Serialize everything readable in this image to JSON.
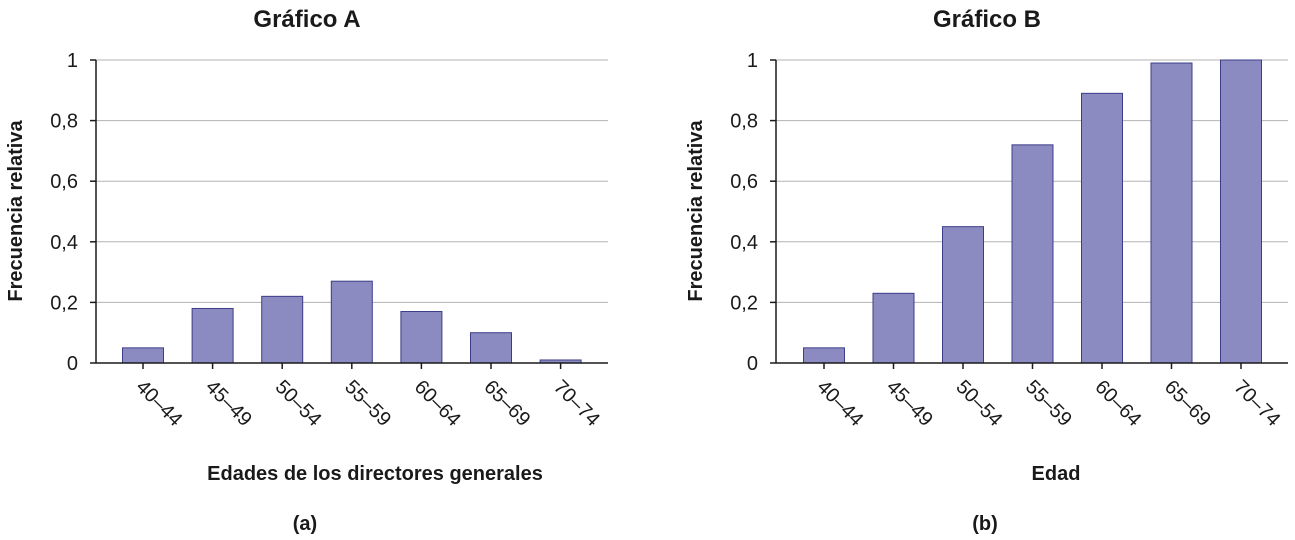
{
  "chart_data": [
    {
      "type": "bar",
      "title": "Gráfico A",
      "xlabel": "Edades de los directores generales",
      "ylabel": "Frecuencia relativa",
      "caption": "(a)",
      "categories": [
        "40–44",
        "45–49",
        "50–54",
        "55–59",
        "60–64",
        "65–69",
        "70–74"
      ],
      "values": [
        0.05,
        0.18,
        0.22,
        0.27,
        0.17,
        0.1,
        0.01
      ],
      "ylim": [
        0,
        1
      ],
      "yticks": [
        "0",
        "0,2",
        "0,4",
        "0,6",
        "0,8",
        "1"
      ],
      "grid": true,
      "bar_color": "#8b8bc1"
    },
    {
      "type": "bar",
      "title": "Gráfico B",
      "xlabel": "Edad",
      "ylabel": "Frecuencia relativa",
      "caption": "(b)",
      "categories": [
        "40–44",
        "45–49",
        "50–54",
        "55–59",
        "60–64",
        "65–69",
        "70–74"
      ],
      "values": [
        0.05,
        0.23,
        0.45,
        0.72,
        0.89,
        0.99,
        1.0
      ],
      "ylim": [
        0,
        1
      ],
      "yticks": [
        "0",
        "0,2",
        "0,4",
        "0,6",
        "0,8",
        "1"
      ],
      "grid": true,
      "bar_color": "#8b8bc1"
    }
  ]
}
